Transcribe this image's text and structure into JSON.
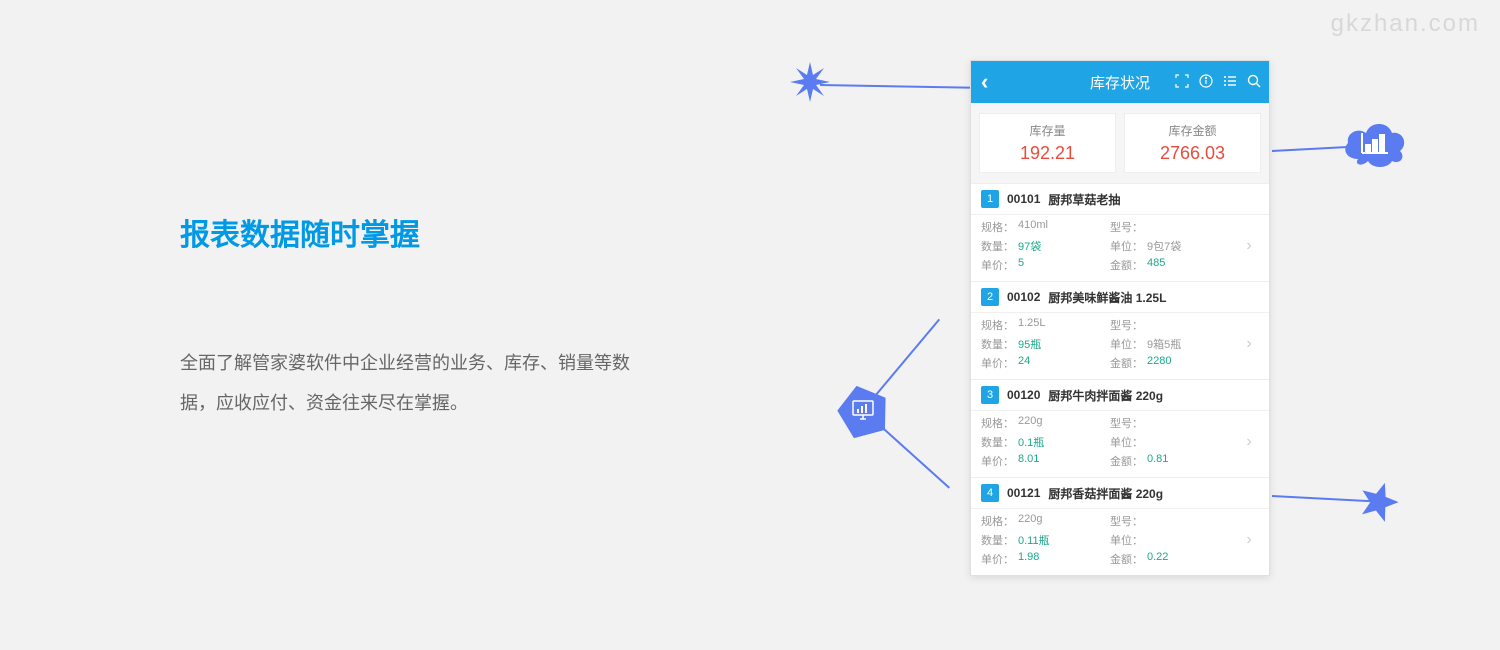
{
  "watermark": "gkzhan.com",
  "heading": "报表数据随时掌握",
  "description": "全面了解管家婆软件中企业经营的业务、库存、销量等数据，应收应付、资金往来尽在掌握。",
  "phone": {
    "title": "库存状况",
    "summary": [
      {
        "label": "库存量",
        "value": "192.21"
      },
      {
        "label": "库存金额",
        "value": "2766.03"
      }
    ],
    "fieldLabels": {
      "spec": "规格：",
      "model": "型号：",
      "qty": "数量：",
      "unit": "单位：",
      "price": "单价：",
      "amount": "金额："
    },
    "items": [
      {
        "num": "1",
        "code": "00101",
        "name": "厨邦草菇老抽",
        "spec": "410ml",
        "model": "",
        "qty": "97袋",
        "unit": "9包7袋",
        "price": "5",
        "amount": "485"
      },
      {
        "num": "2",
        "code": "00102",
        "name": "厨邦美味鲜酱油 1.25L",
        "spec": "1.25L",
        "model": "",
        "qty": "95瓶",
        "unit": "9箱5瓶",
        "price": "24",
        "amount": "2280"
      },
      {
        "num": "3",
        "code": "00120",
        "name": "厨邦牛肉拌面酱 220g",
        "spec": "220g",
        "model": "",
        "qty": "0.1瓶",
        "unit": "",
        "price": "8.01",
        "amount": "0.81"
      },
      {
        "num": "4",
        "code": "00121",
        "name": "厨邦香菇拌面酱 220g",
        "spec": "220g",
        "model": "",
        "qty": "0.11瓶",
        "unit": "",
        "price": "1.98",
        "amount": "0.22"
      }
    ]
  },
  "colors": {
    "bg": "#f2f2f2",
    "accent": "#1fa5e6",
    "heading": "#0099e5",
    "summaryValue": "#e84c3d",
    "fieldValue": "#1ba88a",
    "deco": "#5b7cf0"
  }
}
